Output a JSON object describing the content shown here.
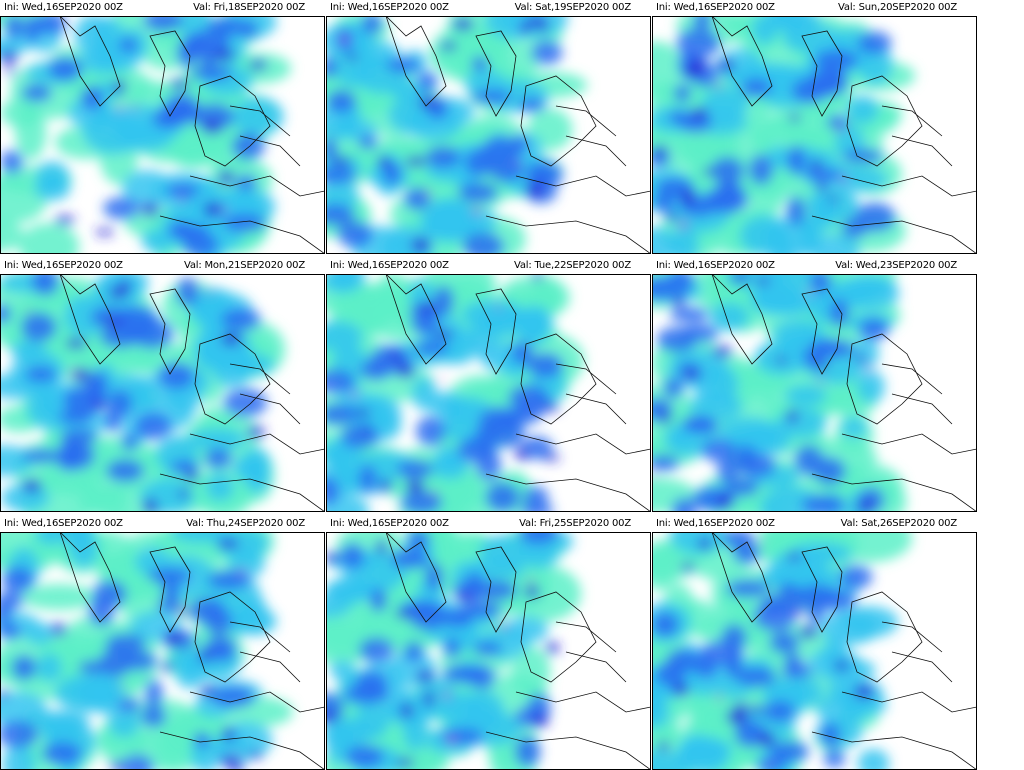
{
  "panels": [
    {
      "ini": "Ini: Wed,16SEP2020 00Z",
      "val": "Val: Fri,18SEP2020 00Z"
    },
    {
      "ini": "Ini: Wed,16SEP2020 00Z",
      "val": "Val: Sat,19SEP2020 00Z"
    },
    {
      "ini": "Ini: Wed,16SEP2020 00Z",
      "val": "Val: Sun,20SEP2020 00Z"
    },
    {
      "ini": "Ini: Wed,16SEP2020 00Z",
      "val": "Val: Mon,21SEP2020 00Z"
    },
    {
      "ini": "Ini: Wed,16SEP2020 00Z",
      "val": "Val: Tue,22SEP2020 00Z"
    },
    {
      "ini": "Ini: Wed,16SEP2020 00Z",
      "val": "Val: Wed,23SEP2020 00Z"
    },
    {
      "ini": "Ini: Wed,16SEP2020 00Z",
      "val": "Val: Thu,24SEP2020 00Z"
    },
    {
      "ini": "Ini: Wed,16SEP2020 00Z",
      "val": "Val: Fri,25SEP2020 00Z"
    },
    {
      "ini": "Ini: Wed,16SEP2020 00Z",
      "val": "Val: Sat,26SEP2020 00Z"
    }
  ]
}
